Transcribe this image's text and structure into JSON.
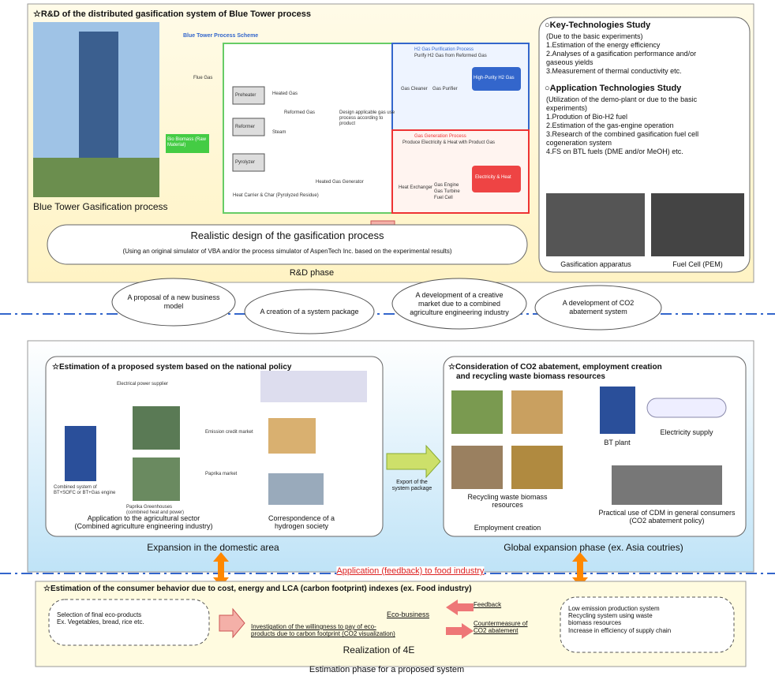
{
  "rd": {
    "title": "☆R&D of the distributed gasification system of Blue Tower process",
    "photo_caption": "Blue Tower Gasification process",
    "scheme": {
      "title": "Blue Tower Process Scheme",
      "flue_gas": "Flue Gas",
      "preheater": "Preheater",
      "reformer": "Reformer",
      "pyrolyzer": "Pyrolyzer",
      "heated_gas": "Heated Gas",
      "reformed_gas": "Reformed Gas",
      "steam": "Steam",
      "raw": "Bio Biomass (Raw Material)",
      "residue": "Heat Carrier & Char (Pyrolyzed Residue)",
      "generator": "Heated Gas Generator",
      "design": "Design applicable gas use process according to product",
      "h2_title": "H2 Gas Purification Process",
      "h2_sub": "Purify H2 Gas from Reformed Gas",
      "cleaner": "Gas Cleaner",
      "purifier": "Gas Purifier",
      "h2_out": "High-Purity H2 Gas",
      "gen_title": "Gas Generation Process",
      "gen_sub": "Produce Electricity & Heat with Product Gas",
      "exchanger": "Heat Exchanger",
      "engines": [
        "Gas Engine",
        "Gas Turbine",
        "Fuel Cell"
      ],
      "gen_out": "Electricity & Heat"
    },
    "realistic": {
      "title": "Realistic design of the gasification process",
      "sub": "(Using an original simulator of VBA and/or the process simulator of AspenTech Inc. based on the experimental results)"
    },
    "phase": "R&D phase",
    "key": {
      "title": "○Key-Technologies Study",
      "lines": [
        "(Due to the basic experiments)",
        "1.Estimation of the energy efficiency",
        "2.Analyses of a gasification performance and/or",
        "gaseous yields",
        "3.Measurement of thermal conductivity etc."
      ]
    },
    "app": {
      "title": "○Application Technologies Study",
      "lines": [
        "(Utilization of the demo-plant or due to the basic",
        "experiments)",
        "1.Prodution of Bio-H2 fuel",
        "2.Estimation of the gas-engine operation",
        "3.Research of the combined gasification fuel cell",
        "cogeneration system",
        "4.FS on BTL fuels (DME and/or MeOH) etc."
      ]
    },
    "photos": [
      "Gasification apparatus",
      "Fuel Cell (PEM)"
    ]
  },
  "outcomes": [
    [
      "A proposal of a new business",
      "model"
    ],
    [
      "A creation of a system package"
    ],
    [
      "A development of a creative",
      "market due to a combined",
      "agriculture engineering industry"
    ],
    [
      "A development of CO2",
      "abatement system"
    ]
  ],
  "domestic": {
    "title": "☆Estimation of a proposed system based on the national policy",
    "power": "Electrical power supplier",
    "emission": "Emission credit market",
    "paprika": "Paprika market",
    "combined": "Combined system of BT+SOFC or BT+Gas engine",
    "greenhouse": "Paprika Greenhouses (combined heat and power)",
    "caption_left": [
      "Application to the agricultural sector",
      "(Combined agriculture engineering industry)"
    ],
    "caption_right": [
      "Correspondence of a",
      "hydrogen society"
    ],
    "phase": "Expansion in the domestic area"
  },
  "export": [
    "Export of the",
    "system package"
  ],
  "global": {
    "title": [
      "☆Consideration of CO2 abatement, employment creation",
      "and recycling waste biomass resources"
    ],
    "plant": "BT plant",
    "electricity": "Electricity supply",
    "recycling": [
      "Recycling waste biomass",
      "resources"
    ],
    "employment": "Employment creation",
    "cdm": [
      "Practical use of CDM in general consumers",
      "(CO2 abatement policy)"
    ],
    "phase": "Global expansion phase (ex. Asia coutries)"
  },
  "feedback_link": "Application (feedback) to food industry",
  "consumer": {
    "title": "☆Estimation of the consumer behavior due to cost, energy and LCA (carbon footprint) indexes (ex. Food industry)",
    "left": [
      "Selection of final eco-products",
      "Ex. Vegetables, bread, rice etc."
    ],
    "middle": [
      "Investigation of the willingness to pay of eco-",
      "products due to carbon footprint (CO2 visualization)"
    ],
    "eco": "Eco-business",
    "feedback": "Feedback",
    "counter": [
      "Countermeasure of",
      "CO2 abatement"
    ],
    "right": [
      "Low emission production system",
      "Recycling system using waste",
      "biomass resources",
      "Increase in efficiency of supply chain"
    ],
    "realization": "Realization of 4E",
    "phase": "Estimation phase for  a proposed system"
  }
}
